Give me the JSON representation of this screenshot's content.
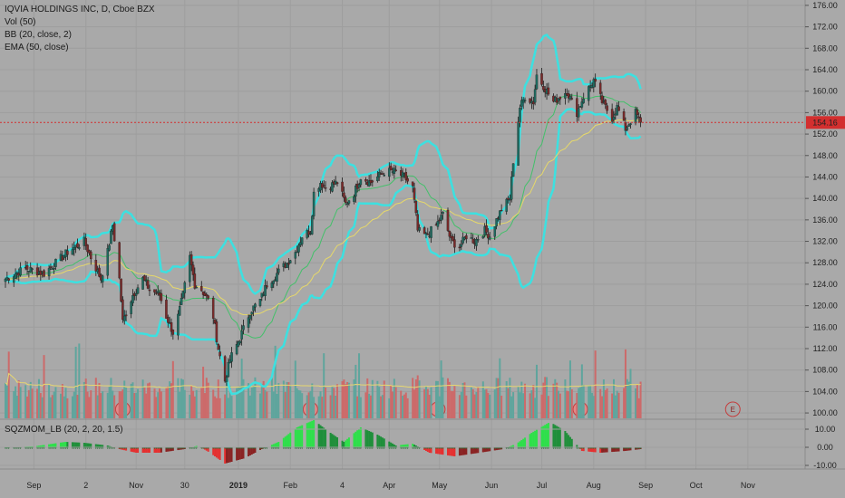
{
  "legend": {
    "title": "IQVIA HOLDINGS INC, D, Cboe BZX",
    "vol": "Vol (50)",
    "bb": "BB (20, close, 2)",
    "ema": "EMA (50, close)"
  },
  "osc_legend": "SQZMOM_LB (20, 2, 20, 1.5)",
  "colors": {
    "background": "#a9a9a9",
    "grid": "#9e9e9e",
    "up_candle": "#1f6b60",
    "down_candle": "#7a2a2a",
    "bb": "#3de0e0",
    "ema": "#e6d86a",
    "basis": "#43c06a",
    "price_line": "#d32f2f",
    "vol_up": "#5fa59d",
    "vol_down": "#cc6a6a",
    "mom_up_strong": "#2ee04a",
    "mom_up_weak": "#1f8f3a",
    "mom_down_strong": "#e53030",
    "mom_down_weak": "#8a2222"
  },
  "chart_data": {
    "type": "candlestick",
    "symbol": "IQVIA HOLDINGS INC",
    "interval": "D",
    "exchange": "Cboe BZX",
    "last_price": "154.16",
    "ylim": [
      99,
      177
    ],
    "y_ticks": [
      "176.00",
      "172.00",
      "168.00",
      "164.00",
      "160.00",
      "156.00",
      "152.00",
      "148.00",
      "144.00",
      "140.00",
      "136.00",
      "132.00",
      "128.00",
      "124.00",
      "120.00",
      "116.00",
      "112.00",
      "108.00",
      "104.00",
      "100.00"
    ],
    "x_ticks": [
      "Sep",
      "2",
      "Nov",
      "30",
      "2019",
      "Feb",
      "4",
      "Apr",
      "May",
      "Jun",
      "Jul",
      "Aug",
      "Sep",
      "Oct",
      "Nov"
    ],
    "x_tick_bold": "2019",
    "earnings_markers": [
      {
        "label": "E",
        "date": "2018-10-24"
      },
      {
        "label": "E",
        "date": "2019-02-13"
      },
      {
        "label": "E",
        "date": "2019-04-30"
      },
      {
        "label": "E",
        "date": "2019-07-24"
      },
      {
        "label": "E",
        "date": "2019-10-23"
      }
    ],
    "price_keypoints": [
      [
        "2018-08-15",
        125
      ],
      [
        "2018-08-27",
        127
      ],
      [
        "2018-09-07",
        126
      ],
      [
        "2018-09-21",
        130
      ],
      [
        "2018-10-01",
        132
      ],
      [
        "2018-10-05",
        129
      ],
      [
        "2018-10-11",
        125
      ],
      [
        "2018-10-15",
        130
      ],
      [
        "2018-10-18",
        135
      ],
      [
        "2018-10-22",
        125
      ],
      [
        "2018-10-24",
        117
      ],
      [
        "2018-10-30",
        122
      ],
      [
        "2018-11-05",
        125
      ],
      [
        "2018-11-09",
        123
      ],
      [
        "2018-11-15",
        122
      ],
      [
        "2018-11-19",
        118
      ],
      [
        "2018-11-23",
        115
      ],
      [
        "2018-11-26",
        118
      ],
      [
        "2018-11-29",
        122
      ],
      [
        "2018-12-03",
        129
      ],
      [
        "2018-12-06",
        124
      ],
      [
        "2018-12-10",
        123
      ],
      [
        "2018-12-14",
        121
      ],
      [
        "2018-12-17",
        118
      ],
      [
        "2018-12-20",
        112
      ],
      [
        "2018-12-24",
        106
      ],
      [
        "2018-12-27",
        110
      ],
      [
        "2019-01-02",
        114
      ],
      [
        "2019-01-08",
        119
      ],
      [
        "2019-01-14",
        121
      ],
      [
        "2019-01-18",
        124
      ],
      [
        "2019-01-24",
        126
      ],
      [
        "2019-01-30",
        128
      ],
      [
        "2019-02-04",
        130
      ],
      [
        "2019-02-08",
        133
      ],
      [
        "2019-02-13",
        134
      ],
      [
        "2019-02-15",
        141
      ],
      [
        "2019-02-19",
        143
      ],
      [
        "2019-02-22",
        142
      ],
      [
        "2019-03-01",
        143
      ],
      [
        "2019-03-06",
        139
      ],
      [
        "2019-03-11",
        141
      ],
      [
        "2019-03-15",
        144
      ],
      [
        "2019-03-21",
        143
      ],
      [
        "2019-03-29",
        145
      ],
      [
        "2019-04-04",
        145
      ],
      [
        "2019-04-10",
        144
      ],
      [
        "2019-04-15",
        142
      ],
      [
        "2019-04-18",
        134
      ],
      [
        "2019-04-23",
        133
      ],
      [
        "2019-04-29",
        135
      ],
      [
        "2019-05-03",
        137
      ],
      [
        "2019-05-08",
        132
      ],
      [
        "2019-05-13",
        131
      ],
      [
        "2019-05-17",
        133
      ],
      [
        "2019-05-22",
        132
      ],
      [
        "2019-05-28",
        134
      ],
      [
        "2019-05-31",
        133
      ],
      [
        "2019-06-04",
        136
      ],
      [
        "2019-06-07",
        138
      ],
      [
        "2019-06-12",
        140
      ],
      [
        "2019-06-14",
        147
      ],
      [
        "2019-06-18",
        157
      ],
      [
        "2019-06-21",
        159
      ],
      [
        "2019-06-26",
        158
      ],
      [
        "2019-06-28",
        163
      ],
      [
        "2019-07-02",
        161
      ],
      [
        "2019-07-08",
        158
      ],
      [
        "2019-07-12",
        159
      ],
      [
        "2019-07-16",
        160
      ],
      [
        "2019-07-22",
        156
      ],
      [
        "2019-07-26",
        159
      ],
      [
        "2019-08-01",
        162
      ],
      [
        "2019-08-06",
        158
      ],
      [
        "2019-08-12",
        155
      ],
      [
        "2019-08-15",
        157
      ],
      [
        "2019-08-20",
        153
      ],
      [
        "2019-08-26",
        156
      ],
      [
        "2019-08-29",
        154.16
      ]
    ],
    "volume_ylim": [
      0,
      3
    ],
    "momentum_ylim": [
      -12,
      15
    ],
    "momentum_ticks": [
      "10.00",
      "0.00",
      "-10.00"
    ],
    "momentum_keypoints": [
      [
        "2018-08-15",
        0
      ],
      [
        "2018-09-01",
        0.5
      ],
      [
        "2018-09-20",
        3
      ],
      [
        "2018-10-01",
        2.5
      ],
      [
        "2018-10-15",
        1
      ],
      [
        "2018-10-22",
        -1
      ],
      [
        "2018-11-01",
        -3
      ],
      [
        "2018-11-15",
        -3
      ],
      [
        "2018-11-30",
        -1
      ],
      [
        "2018-12-08",
        1
      ],
      [
        "2018-12-15",
        -3
      ],
      [
        "2018-12-24",
        -9
      ],
      [
        "2019-01-05",
        -6
      ],
      [
        "2019-01-15",
        -1
      ],
      [
        "2019-01-25",
        3
      ],
      [
        "2019-02-05",
        11
      ],
      [
        "2019-02-15",
        15
      ],
      [
        "2019-02-25",
        8
      ],
      [
        "2019-03-05",
        3
      ],
      [
        "2019-03-15",
        11
      ],
      [
        "2019-03-25",
        7
      ],
      [
        "2019-04-05",
        1
      ],
      [
        "2019-04-15",
        2
      ],
      [
        "2019-04-25",
        -3
      ],
      [
        "2019-05-10",
        -5
      ],
      [
        "2019-05-25",
        -3
      ],
      [
        "2019-06-08",
        -1
      ],
      [
        "2019-06-16",
        2
      ],
      [
        "2019-06-25",
        8
      ],
      [
        "2019-07-06",
        14
      ],
      [
        "2019-07-15",
        9
      ],
      [
        "2019-07-25",
        -2
      ],
      [
        "2019-08-05",
        -3
      ],
      [
        "2019-08-20",
        -2
      ],
      [
        "2019-08-29",
        -1
      ]
    ]
  }
}
